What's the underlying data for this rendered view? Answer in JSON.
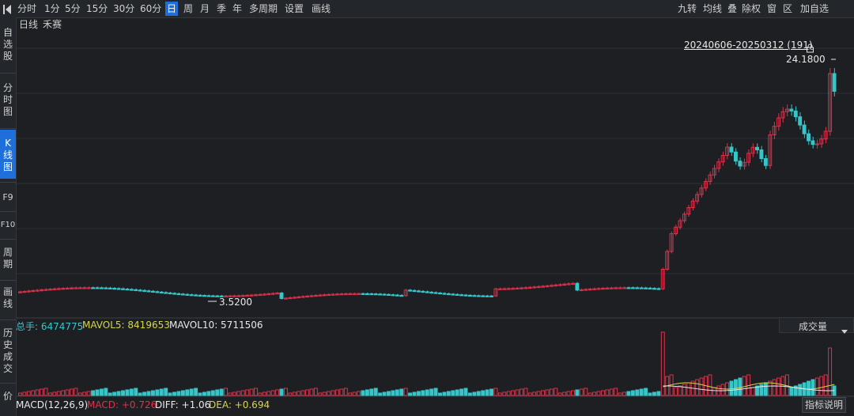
{
  "toolbar": {
    "left_tabs": [
      "分时",
      "1分",
      "5分",
      "15分",
      "30分",
      "60分",
      "日",
      "周",
      "月",
      "季",
      "年",
      "多周期",
      "设置",
      "画线"
    ],
    "active_tab": "日",
    "right_tabs": [
      "九转",
      "均线",
      "叠",
      "除权",
      "窗",
      "区",
      "加自选"
    ]
  },
  "sidebar": {
    "items": [
      "自选股",
      "分时图",
      "K线图",
      "F9",
      "F10",
      "周期",
      "画线",
      "历史成交",
      "价"
    ],
    "active": "K线图"
  },
  "chart_header": {
    "period": "日线",
    "name": "禾赛"
  },
  "range_label": "20240606-20250312 (191)",
  "max_price_label": "24.1800",
  "min_price_label": "3.5200",
  "volume_header": {
    "total": "总手: 6474775",
    "mavol5": "MAVOL5: 8419653",
    "mavol10": "MAVOL10: 5711506"
  },
  "volume_selector": "成交量",
  "macd_header": {
    "title": "MACD(12,26,9)",
    "macd": "MACD: +0.726",
    "diff": "DIFF: +1.06",
    "dea": "DEA: +0.694"
  },
  "help_button": "指标说明",
  "colors": {
    "up": "#e0314b",
    "down": "#36c6c9",
    "accent": "#1e6fd9",
    "mavol5": "#d6d64a",
    "mavol10": "#e8e8e8",
    "diff": "#e8e8e8",
    "dea": "#d6d64a"
  },
  "chart_data": {
    "type": "candlestick",
    "price_range": [
      3.0,
      25.0
    ],
    "count": 191,
    "first_date": "20240606",
    "last_date": "20250312",
    "max_price": 24.18,
    "min_price": 3.52,
    "grid": true
  }
}
